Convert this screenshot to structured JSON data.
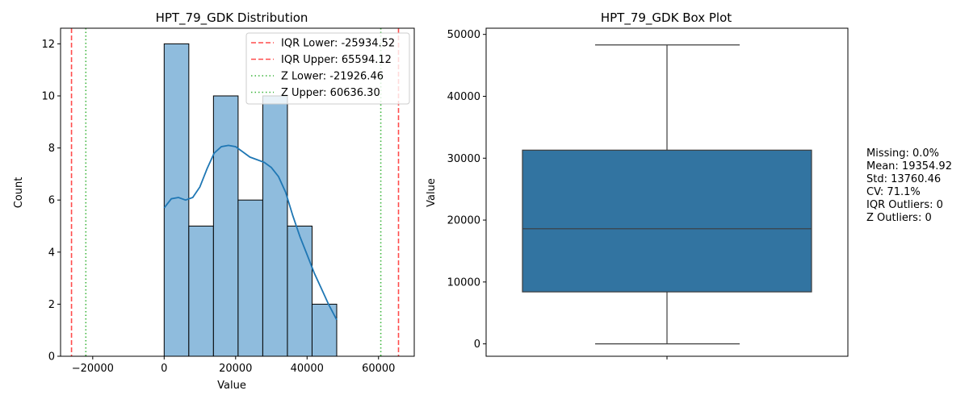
{
  "chart_data": [
    {
      "type": "histogram",
      "title": "HPT_79_GDK Distribution",
      "xlabel": "Value",
      "ylabel": "Count",
      "xlim": [
        -29000,
        70000
      ],
      "ylim": [
        0,
        12.6
      ],
      "xticks": [
        -20000,
        0,
        20000,
        40000,
        60000
      ],
      "xtick_labels": [
        "−20000",
        "0",
        "20000",
        "40000",
        "60000"
      ],
      "yticks": [
        0,
        2,
        4,
        6,
        8,
        10,
        12
      ],
      "bin_edges": [
        0,
        6900,
        13800,
        20700,
        27600,
        34500,
        41400,
        48300
      ],
      "counts": [
        12,
        5,
        10,
        6,
        10,
        5,
        2
      ],
      "bar_color": "#8fbcdd",
      "kde_color": "#1f77b4",
      "kde": {
        "x": [
          0,
          2000,
          4000,
          6000,
          8000,
          10000,
          12000,
          14000,
          16000,
          18000,
          20000,
          22000,
          24000,
          26000,
          28000,
          30000,
          32000,
          34000,
          36000,
          38000,
          40000,
          42000,
          44000,
          46000,
          48300
        ],
        "y": [
          5.7,
          6.05,
          6.1,
          6.0,
          6.1,
          6.5,
          7.2,
          7.8,
          8.05,
          8.1,
          8.05,
          7.85,
          7.65,
          7.55,
          7.45,
          7.25,
          6.9,
          6.3,
          5.4,
          4.6,
          3.9,
          3.2,
          2.6,
          2.0,
          1.4
        ]
      },
      "reference_lines": [
        {
          "label": "IQR Lower: -25934.52",
          "value": -25934.52,
          "color": "#ff4c4c",
          "style": "dashed"
        },
        {
          "label": "IQR Upper: 65594.12",
          "value": 65594.12,
          "color": "#ff4c4c",
          "style": "dashed"
        },
        {
          "label": "Z Lower: -21926.46",
          "value": -21926.46,
          "color": "#3cb43c",
          "style": "dotted"
        },
        {
          "label": "Z Upper: 60636.30",
          "value": 60636.3,
          "color": "#3cb43c",
          "style": "dotted"
        }
      ],
      "legend_position": "top-right"
    },
    {
      "type": "box",
      "title": "HPT_79_GDK Box Plot",
      "xlabel": "",
      "ylabel": "Value",
      "ylim": [
        -2000,
        51000
      ],
      "yticks": [
        0,
        10000,
        20000,
        30000,
        40000,
        50000
      ],
      "box": {
        "min": 0,
        "q1": 8400,
        "median": 18600,
        "q3": 31300,
        "max": 48300
      },
      "box_color": "#3274a1",
      "line_color": "#3d3d3d"
    }
  ],
  "stats": {
    "lines": [
      "Missing: 0.0%",
      "Mean: 19354.92",
      "Std: 13760.46",
      "CV: 71.1%",
      "IQR Outliers: 0",
      "Z Outliers: 0"
    ]
  }
}
